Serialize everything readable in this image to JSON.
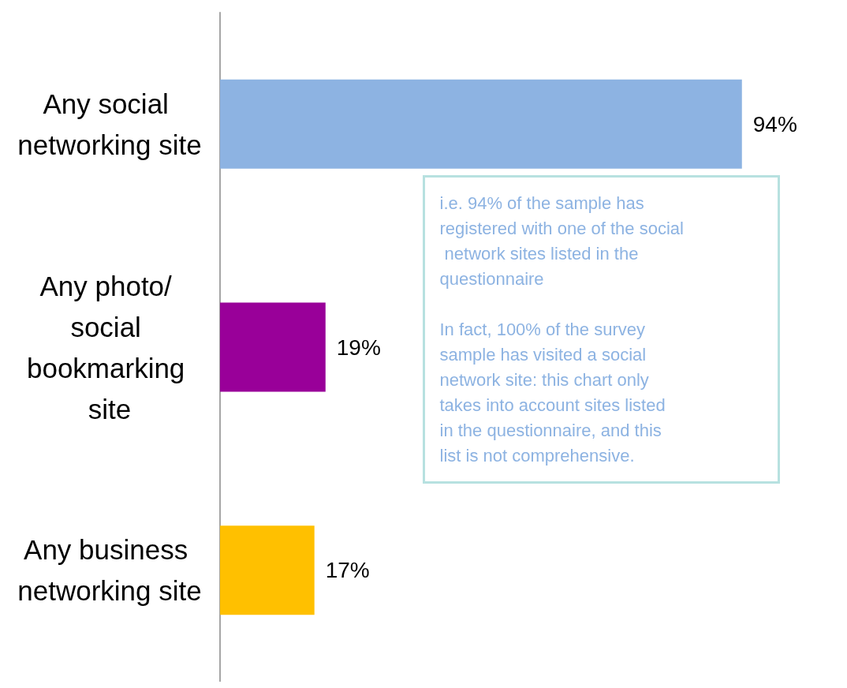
{
  "chart_data": {
    "type": "bar",
    "orientation": "horizontal",
    "categories": [
      "Any social networking site",
      "Any photo/ social bookmarking site",
      "Any business networking site"
    ],
    "values": [
      94,
      19,
      17
    ],
    "colors": [
      "#8db3e2",
      "#990099",
      "#ffc000"
    ],
    "value_labels": [
      "94%",
      "19%",
      "17%"
    ],
    "grid": false,
    "annotations": [
      "i.e. 94% of the sample has registered with one of the social network sites listed in the questionnaire\n\nIn fact, 100% of the survey sample has visited a social network site: this chart only takes into account sites listed in the questionnaire, and this list is not comprehensive."
    ]
  }
}
